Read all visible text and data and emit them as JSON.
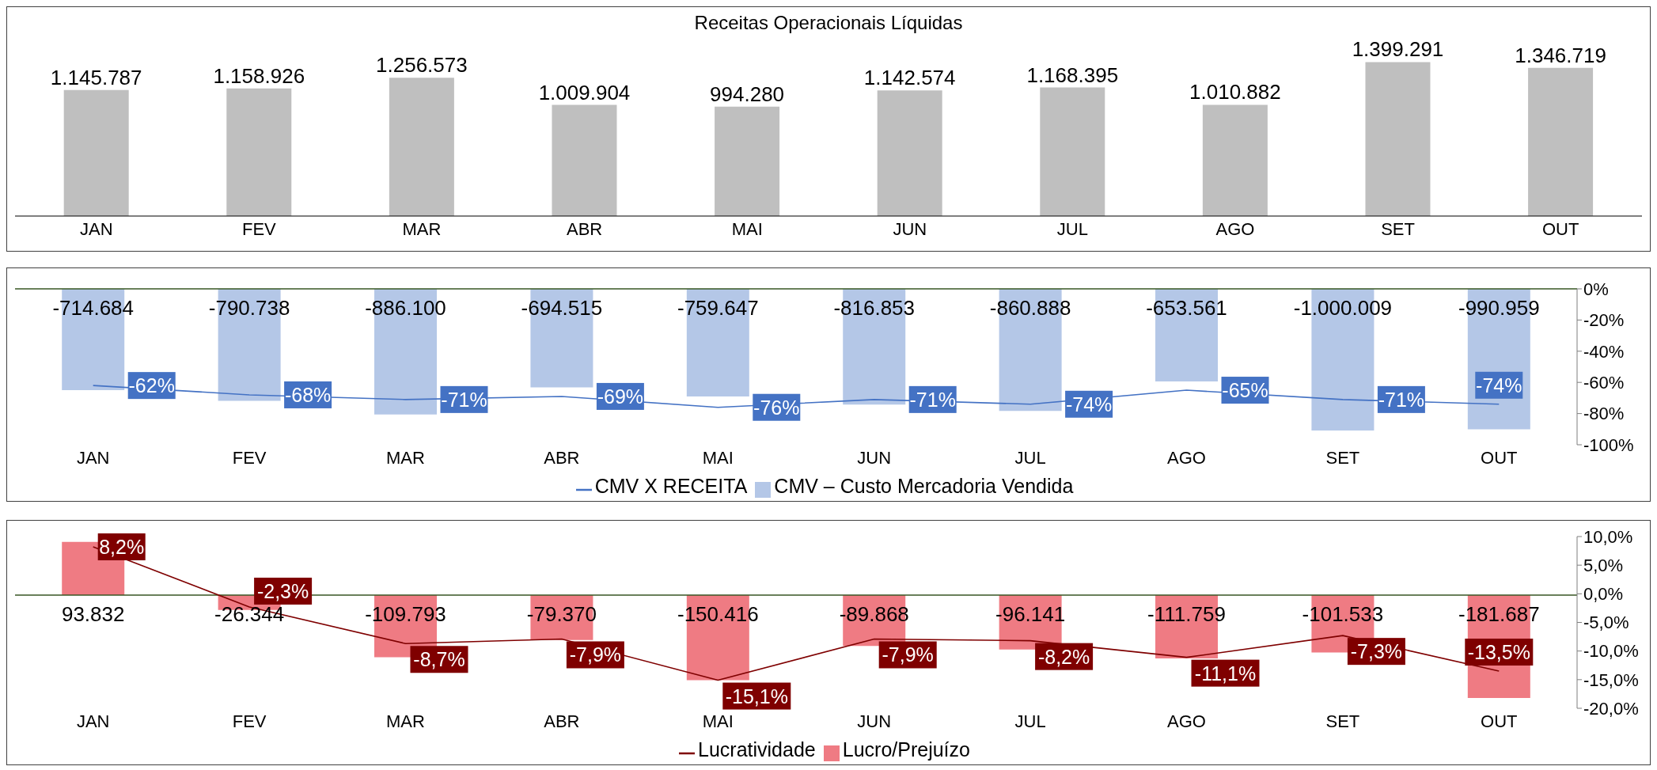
{
  "chart_data": [
    {
      "type": "bar",
      "title": "Receitas Operacionais Líquidas",
      "categories": [
        "JAN",
        "FEV",
        "MAR",
        "ABR",
        "MAI",
        "JUN",
        "JUL",
        "AGO",
        "SET",
        "OUT"
      ],
      "values": [
        1145787,
        1158926,
        1256573,
        1009904,
        994280,
        1142574,
        1168395,
        1010882,
        1399291,
        1346719
      ],
      "value_labels": [
        "1.145.787",
        "1.158.926",
        "1.256.573",
        "1.009.904",
        "994.280",
        "1.142.574",
        "1.168.395",
        "1.010.882",
        "1.399.291",
        "1.346.719"
      ],
      "color": "#bfbfbf"
    },
    {
      "type": "bar",
      "categories": [
        "JAN",
        "FEV",
        "MAR",
        "ABR",
        "MAI",
        "JUN",
        "JUL",
        "AGO",
        "SET",
        "OUT"
      ],
      "series": [
        {
          "name": "CMV – Custo Mercadoria Vendida",
          "type": "bar",
          "color": "#b4c7e7",
          "values": [
            -714684,
            -790738,
            -886100,
            -694515,
            -759647,
            -816853,
            -860888,
            -653561,
            -1000009,
            -990959
          ],
          "value_labels": [
            "-714.684",
            "-790.738",
            "-886.100",
            "-694.515",
            "-759.647",
            "-816.853",
            "-860.888",
            "-653.561",
            "-1.000.009",
            "-990.959"
          ]
        },
        {
          "name": "CMV X RECEITA",
          "type": "line",
          "axis": "y2",
          "color": "#4472c4",
          "values": [
            -62,
            -68,
            -71,
            -69,
            -76,
            -71,
            -74,
            -65,
            -71,
            -74
          ],
          "value_labels": [
            "-62%",
            "-68%",
            "-71%",
            "-69%",
            "-76%",
            "-71%",
            "-74%",
            "-65%",
            "-71%",
            "-74%"
          ]
        }
      ],
      "y2lim": [
        -100,
        0
      ],
      "y2ticks": [
        {
          "value": 0,
          "label": "0%"
        },
        {
          "value": -20,
          "label": "-20%"
        },
        {
          "value": -40,
          "label": "-40%"
        },
        {
          "value": -60,
          "label": "-60%"
        },
        {
          "value": -80,
          "label": "-80%"
        },
        {
          "value": -100,
          "label": "-100%"
        }
      ],
      "legend": "bottom"
    },
    {
      "type": "bar",
      "categories": [
        "JAN",
        "FEV",
        "MAR",
        "ABR",
        "MAI",
        "JUN",
        "JUL",
        "AGO",
        "SET",
        "OUT"
      ],
      "series": [
        {
          "name": "Lucro/Prejuízo",
          "type": "bar",
          "color": "#ef7b83",
          "values": [
            93832,
            -26344,
            -109793,
            -79370,
            -150416,
            -89868,
            -96141,
            -111759,
            -101533,
            -181687
          ],
          "value_labels": [
            "93.832",
            "-26.344",
            "-109.793",
            "-79.370",
            "-150.416",
            "-89.868",
            "-96.141",
            "-111.759",
            "-101.533",
            "-181.687"
          ]
        },
        {
          "name": "Lucratividade",
          "type": "line",
          "axis": "y2",
          "color": "#7f0000",
          "values": [
            8.2,
            -2.3,
            -8.7,
            -7.9,
            -15.1,
            -7.9,
            -8.2,
            -11.1,
            -7.3,
            -13.5
          ],
          "value_labels": [
            "8,2%",
            "-2,3%",
            "-8,7%",
            "-7,9%",
            "-15,1%",
            "-7,9%",
            "-8,2%",
            "-11,1%",
            "-7,3%",
            "-13,5%"
          ]
        }
      ],
      "y2lim": [
        -20,
        10
      ],
      "y2ticks": [
        {
          "value": 10,
          "label": "10,0%"
        },
        {
          "value": 5,
          "label": "5,0%"
        },
        {
          "value": 0,
          "label": "0,0%"
        },
        {
          "value": -5,
          "label": "-5,0%"
        },
        {
          "value": -10,
          "label": "-10,0%"
        },
        {
          "value": -15,
          "label": "-15,0%"
        },
        {
          "value": -20,
          "label": "-20,0%"
        }
      ],
      "legend": "bottom"
    }
  ]
}
